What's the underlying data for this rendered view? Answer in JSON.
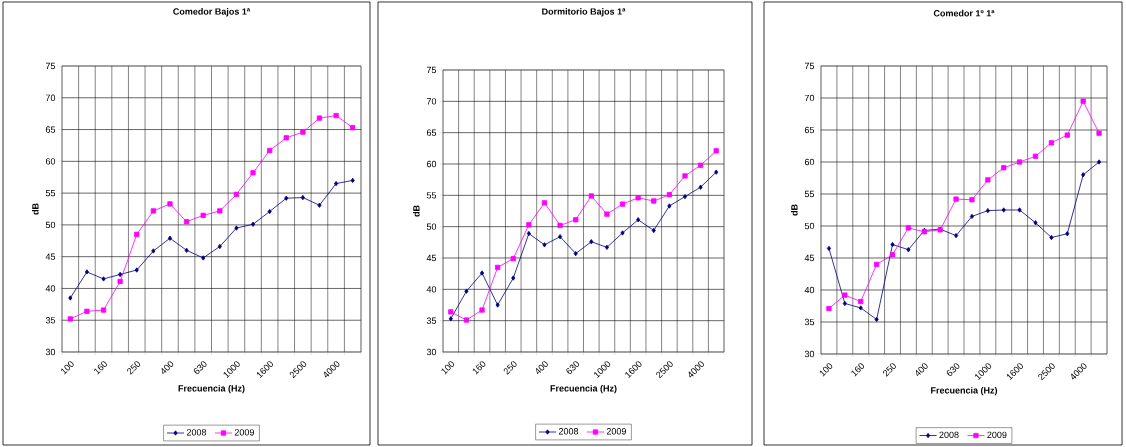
{
  "chart_data": [
    {
      "type": "line",
      "title": "Comedor Bajos 1ª",
      "xlabel": "Frecuencia (Hz)",
      "ylabel": "dB",
      "categories": [
        "100",
        null,
        "160",
        null,
        "250",
        null,
        "400",
        null,
        "630",
        null,
        "1000",
        null,
        "1600",
        null,
        "2500",
        null,
        "4000",
        null
      ],
      "series": [
        {
          "name": "2008",
          "color": "#000080",
          "marker": "diamond",
          "values": [
            38.5,
            42.6,
            41.5,
            42.2,
            42.9,
            45.9,
            47.9,
            46.0,
            44.8,
            46.6,
            49.5,
            50.1,
            52.1,
            54.2,
            54.3,
            53.1,
            56.5,
            57.0
          ]
        },
        {
          "name": "2009",
          "color": "#ff00ff",
          "marker": "square",
          "values": [
            35.2,
            36.4,
            36.6,
            41.1,
            48.5,
            52.2,
            53.3,
            50.5,
            51.5,
            52.2,
            54.8,
            58.2,
            61.7,
            63.7,
            64.6,
            66.8,
            67.2,
            65.3
          ]
        }
      ],
      "ylim": [
        30,
        75
      ],
      "yticks": [
        30,
        35,
        40,
        45,
        50,
        55,
        60,
        65,
        70,
        75
      ],
      "grid": true,
      "legend": "bottom"
    },
    {
      "type": "line",
      "title": "Dormitorio Bajos 1ª",
      "xlabel": "Frecuencia (Hz)",
      "ylabel": "dB",
      "categories": [
        "100",
        null,
        "160",
        null,
        "250",
        null,
        "400",
        null,
        "630",
        null,
        "1000",
        null,
        "1600",
        null,
        "2500",
        null,
        "4000",
        null
      ],
      "series": [
        {
          "name": "2008",
          "color": "#000080",
          "marker": "diamond",
          "values": [
            35.3,
            39.7,
            42.6,
            37.5,
            41.8,
            48.9,
            47.1,
            48.4,
            45.7,
            47.6,
            46.7,
            49.0,
            51.1,
            49.4,
            53.3,
            54.8,
            56.3,
            58.7
          ]
        },
        {
          "name": "2009",
          "color": "#ff00ff",
          "marker": "square",
          "values": [
            36.4,
            35.1,
            36.7,
            43.5,
            44.9,
            50.3,
            53.8,
            50.2,
            51.1,
            54.9,
            52.0,
            53.6,
            54.6,
            54.1,
            55.1,
            58.1,
            59.8,
            62.1
          ]
        }
      ],
      "ylim": [
        30,
        75
      ],
      "yticks": [
        30,
        35,
        40,
        45,
        50,
        55,
        60,
        65,
        70,
        75
      ],
      "grid": true,
      "legend": "bottom"
    },
    {
      "type": "line",
      "title": "Comedor 1º 1ª",
      "xlabel": "Frecuencia (Hz)",
      "ylabel": "dB",
      "categories": [
        "100",
        null,
        "160",
        null,
        "250",
        null,
        "400",
        null,
        "630",
        null,
        "1000",
        null,
        "1600",
        null,
        "2500",
        null,
        "4000",
        null
      ],
      "series": [
        {
          "name": "2008",
          "color": "#000080",
          "marker": "diamond",
          "values": [
            46.5,
            37.9,
            37.2,
            35.4,
            47.1,
            46.3,
            49.3,
            49.5,
            48.5,
            51.5,
            52.4,
            52.5,
            52.5,
            50.5,
            48.2,
            48.8,
            58.0,
            60.0
          ]
        },
        {
          "name": "2009",
          "color": "#ff00ff",
          "marker": "square",
          "values": [
            37.1,
            39.2,
            38.2,
            44.0,
            45.5,
            49.7,
            49.1,
            49.4,
            54.2,
            54.1,
            57.2,
            59.1,
            60.0,
            60.9,
            63.0,
            64.2,
            69.5,
            64.5
          ]
        }
      ],
      "ylim": [
        30,
        75
      ],
      "yticks": [
        30,
        35,
        40,
        45,
        50,
        55,
        60,
        65,
        70,
        75
      ],
      "grid": true,
      "legend": "bottom"
    }
  ]
}
